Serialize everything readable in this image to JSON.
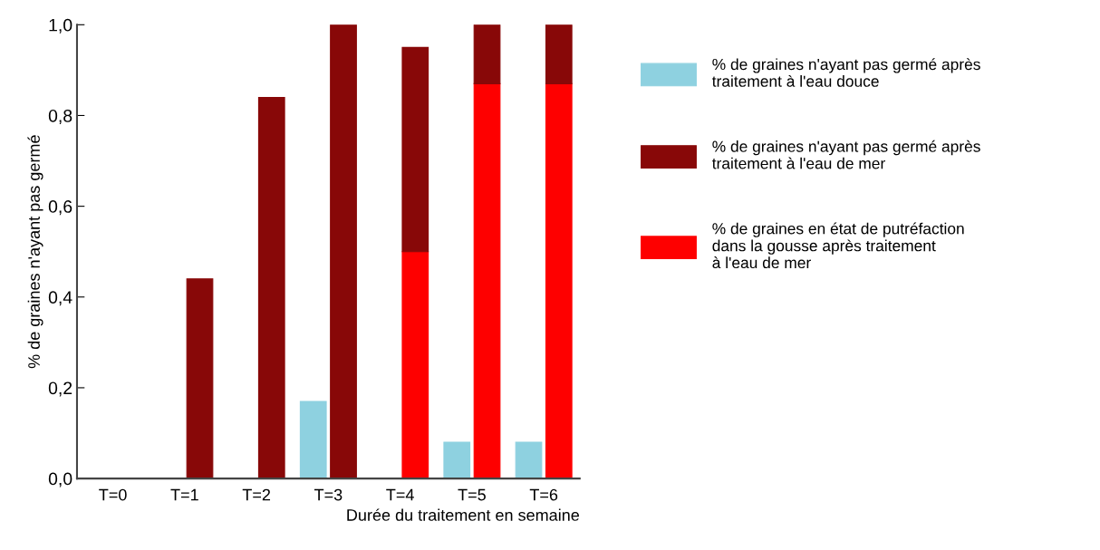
{
  "chart_data": {
    "type": "bar",
    "ylabel": "% de graines n'ayant pas germé",
    "xlabel": "Durée du traitement en semaine",
    "categories": [
      "T=0",
      "T=1",
      "T=2",
      "T=3",
      "T=4",
      "T=5",
      "T=6"
    ],
    "series": [
      {
        "name": "% de graines n'ayant pas germé après\ntraitement à l'eau douce",
        "color": "#8ed1e0",
        "values": [
          0,
          0,
          0,
          0.17,
          0,
          0.08,
          0.08
        ]
      },
      {
        "name": "% de graines en état de putréfaction\ndans la gousse après traitement\nà l'eau de mer",
        "color": "#fe0000",
        "values": [
          0,
          0,
          0,
          0,
          0.5,
          0.87,
          0.87
        ]
      },
      {
        "name": "% de graines n'ayant pas germé après\ntraitement à l'eau de mer",
        "color": "#880808",
        "base": [
          null,
          0,
          0,
          0,
          0.5,
          0.87,
          0.87
        ],
        "values": [
          0,
          0.44,
          0.84,
          1.0,
          0.45,
          0.13,
          0.13
        ]
      }
    ],
    "ylim": [
      0,
      1.0
    ],
    "yticks": [
      {
        "value": 0,
        "label": "0,0"
      },
      {
        "value": 0.2,
        "label": "0,2"
      },
      {
        "value": 0.4,
        "label": "0,4"
      },
      {
        "value": 0.6,
        "label": "0,6"
      },
      {
        "value": 0.8,
        "label": "0,8"
      },
      {
        "value": 1.0,
        "label": "1,0"
      }
    ],
    "grid": false,
    "legend": "right"
  }
}
